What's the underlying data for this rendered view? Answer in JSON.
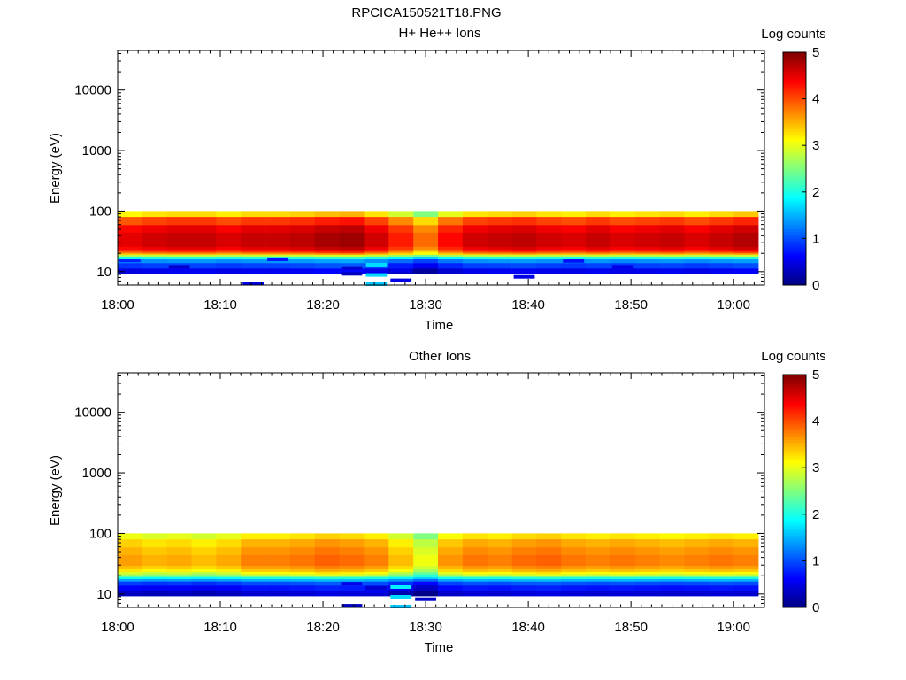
{
  "figure_title": "RPCICA150521T18.PNG",
  "chart_data": [
    {
      "type": "heatmap",
      "title": "H+ He++ Ions",
      "xlabel": "Time",
      "ylabel": "Energy (eV)",
      "y_scale": "log",
      "ylim": [
        6,
        45000
      ],
      "xlim": [
        "18:00",
        "19:03"
      ],
      "x_ticks": [
        "18:00",
        "18:10",
        "18:20",
        "18:30",
        "18:40",
        "18:50",
        "19:00"
      ],
      "y_ticks": [
        "10",
        "100",
        "1000",
        "10000"
      ],
      "colorbar": {
        "label": "Log counts",
        "range": [
          0,
          5
        ],
        "ticks": [
          "0",
          "1",
          "2",
          "3",
          "4",
          "5"
        ]
      },
      "time_bins": 26,
      "bin_minutes": 2.4,
      "energy_bands_eV": [
        10.3,
        12.6,
        15.5,
        17.2,
        18.6,
        19.6,
        20.7,
        22.4,
        24.5,
        27.5,
        31.6,
        39.0,
        51.0,
        69.0,
        95.0
      ],
      "band_profile": [
        0.5,
        0.9,
        1.3,
        2.0,
        2.8,
        3.4,
        3.85,
        4.2,
        4.4,
        4.55,
        4.55,
        4.55,
        4.4,
        4.0,
        3.2
      ],
      "bin_offsets": [
        -0.05,
        0.05,
        0.1,
        0.1,
        0.0,
        0.1,
        0.1,
        0.15,
        0.25,
        0.3,
        0.05,
        -0.3,
        -0.7,
        -0.2,
        0.05,
        0.1,
        0.15,
        0.05,
        0.0,
        0.1,
        0.0,
        0.05,
        0.1,
        0.0,
        0.1,
        0.2
      ],
      "low_energy_dropouts": [
        {
          "bin": 0,
          "energy_eV": 15.3,
          "value": 0.8
        },
        {
          "bin": 2,
          "energy_eV": 12.0,
          "value": 0.4
        },
        {
          "bin": 5,
          "energy_eV": 6.4,
          "value": 0.5
        },
        {
          "bin": 6,
          "energy_eV": 16.0,
          "value": 0.7
        },
        {
          "bin": 9,
          "energy_eV": 9.2,
          "value": 0.3
        },
        {
          "bin": 9,
          "energy_eV": 11.5,
          "value": 0.4
        },
        {
          "bin": 10,
          "energy_eV": 6.2,
          "value": 1.6
        },
        {
          "bin": 10,
          "energy_eV": 8.8,
          "value": 1.7
        },
        {
          "bin": 10,
          "energy_eV": 13.0,
          "value": 1.7
        },
        {
          "bin": 11,
          "energy_eV": 7.2,
          "value": 0.5
        },
        {
          "bin": 11,
          "energy_eV": 10.5,
          "value": 0.5
        },
        {
          "bin": 16,
          "energy_eV": 8.2,
          "value": 0.5
        },
        {
          "bin": 18,
          "energy_eV": 15.0,
          "value": 0.7
        },
        {
          "bin": 20,
          "energy_eV": 12.0,
          "value": 0.5
        }
      ]
    },
    {
      "type": "heatmap",
      "title": "Other Ions",
      "xlabel": "Time",
      "ylabel": "Energy (eV)",
      "y_scale": "log",
      "ylim": [
        6,
        45000
      ],
      "xlim": [
        "18:00",
        "19:03"
      ],
      "x_ticks": [
        "18:00",
        "18:10",
        "18:20",
        "18:30",
        "18:40",
        "18:50",
        "19:00"
      ],
      "y_ticks": [
        "10",
        "100",
        "1000",
        "10000"
      ],
      "colorbar": {
        "label": "Log counts",
        "range": [
          0,
          5
        ],
        "ticks": [
          "0",
          "1",
          "2",
          "3",
          "4",
          "5"
        ]
      },
      "time_bins": 26,
      "bin_minutes": 2.4,
      "energy_bands_eV": [
        10.3,
        12.6,
        15.5,
        17.2,
        18.6,
        19.6,
        20.7,
        22.4,
        24.5,
        27.5,
        31.6,
        39.0,
        51.0,
        69.0,
        95.0
      ],
      "band_profile": [
        0.4,
        0.7,
        1.0,
        1.5,
        2.0,
        2.4,
        2.8,
        3.1,
        3.4,
        3.6,
        3.75,
        3.75,
        3.65,
        3.5,
        3.2
      ],
      "bin_offsets": [
        -0.15,
        -0.25,
        -0.2,
        -0.3,
        -0.2,
        0.0,
        0.0,
        0.05,
        0.15,
        0.1,
        0.0,
        -0.3,
        -0.7,
        -0.1,
        0.05,
        0.0,
        0.1,
        0.15,
        0.05,
        0.0,
        0.05,
        0.0,
        -0.05,
        0.0,
        0.05,
        0.0
      ],
      "low_energy_dropouts": [
        {
          "bin": 9,
          "energy_eV": 6.4,
          "value": 0.3
        },
        {
          "bin": 9,
          "energy_eV": 14.8,
          "value": 0.5
        },
        {
          "bin": 10,
          "energy_eV": 10.8,
          "value": 0.5
        },
        {
          "bin": 10,
          "energy_eV": 12.6,
          "value": 0.4
        },
        {
          "bin": 11,
          "energy_eV": 6.2,
          "value": 1.6
        },
        {
          "bin": 11,
          "energy_eV": 9.0,
          "value": 1.7
        },
        {
          "bin": 11,
          "energy_eV": 13.0,
          "value": 1.8
        },
        {
          "bin": 12,
          "energy_eV": 8.2,
          "value": 0.4
        }
      ]
    }
  ]
}
